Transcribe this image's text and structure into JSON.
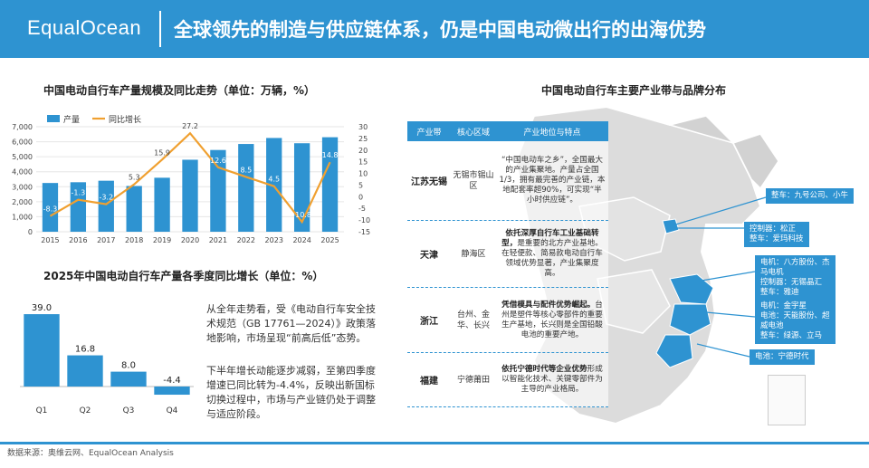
{
  "header": {
    "logo": "EqualOcean",
    "title": "全球领先的制造与供应链体系，仍是中国电动微出行的出海优势"
  },
  "chart1": {
    "title": "中国电动自行车产量规模及同比走势（单位：万辆，%）",
    "legend_bar": "产量",
    "legend_line": "同比增长"
  },
  "chart2": {
    "title": "2025年中国电动自行车产量各季度同比增长（单位：%）"
  },
  "paragraphs": {
    "p1": "从全年走势看，受《电动自行车安全技术规范（GB 17761—2024）》政策落地影响，市场呈现“前高后低”态势。",
    "p2": "下半年增长动能逐步减弱，至第四季度增速已同比转为-4.4%，反映出新国标切换过程中，市场与产业链仍处于调整与适应阶段。"
  },
  "map": {
    "title": "中国电动自行车主要产业带与品牌分布",
    "table_headers": [
      "产业带",
      "核心区域",
      "产业地位与特点"
    ],
    "rows": [
      {
        "belt": "江苏无锡",
        "region": "无锡市锡山区",
        "bold": "",
        "desc": "“中国电动车之乡”，全国最大的产业集聚地。产量占全国1/3，拥有最完善的产业链，本地配套率超90%，可实现“半小时供应链”。"
      },
      {
        "belt": "天津",
        "region": "静海区",
        "bold": "依托深厚自行车工业基础转型，",
        "desc": "是重要的北方产业基地。在轻便款、简易款电动自行车领域优势显著，产业集聚度高。"
      },
      {
        "belt": "浙江",
        "region": "台州、金华、长兴",
        "bold": "凭借模具与配件优势崛起。",
        "desc": "台州是塑件等核心零部件的重要生产基地，长兴则是全国铅酸电池的重要产地。"
      },
      {
        "belt": "福建",
        "region": "宁德莆田",
        "bold": "依托宁德时代等企业优势",
        "desc": "形成以智能化技术、关键零部件为主导的产业格局。"
      }
    ],
    "callouts": [
      "整车：九号公司、小牛",
      "控制器：松正\n整车：爱玛科技",
      "电机：八方股份、杰\n马电机\n控制器：无锡晶汇\n整车：雅迪",
      "电机：金宇星\n电池：天能股份、超\n威电池\n整车：绿源、立马",
      "电池：宁德时代"
    ]
  },
  "footer": "数据来源：奥维云网、EqualOcean Analysis",
  "colors": {
    "brand": "#2e93d1",
    "bar": "#2e93d1",
    "line": "#f0a030"
  },
  "chart_data": [
    {
      "type": "bar",
      "title": "中国电动自行车产量规模及同比走势（单位：万辆，%）",
      "categories": [
        "2015",
        "2016",
        "2017",
        "2018",
        "2019",
        "2020",
        "2021",
        "2022",
        "2023",
        "2024",
        "2025"
      ],
      "series": [
        {
          "name": "产量",
          "kind": "bar",
          "axis": "left",
          "values": [
            3250,
            3300,
            3400,
            3050,
            3600,
            4800,
            5450,
            5850,
            6250,
            5900,
            6300
          ]
        },
        {
          "name": "同比增长",
          "kind": "line",
          "axis": "right",
          "values": [
            -8.3,
            -1.3,
            -3.2,
            5.3,
            15.9,
            27.2,
            12.6,
            8.5,
            4.5,
            -10.8,
            14.8
          ]
        }
      ],
      "y_left_ticks": [
        "0",
        "1,000",
        "2,000",
        "3,000",
        "4,000",
        "5,000",
        "6,000",
        "7,000"
      ],
      "y_right_ticks": [
        "-15",
        "-10",
        "-5",
        "0",
        "5",
        "10",
        "15",
        "20",
        "25",
        "30"
      ],
      "ylim_left": [
        0,
        7000
      ],
      "ylim_right": [
        -15,
        30
      ],
      "legend": "top-left",
      "grid": true
    },
    {
      "type": "bar",
      "title": "2025年中国电动自行车产量各季度同比增长（单位：%）",
      "categories": [
        "Q1",
        "Q2",
        "Q3",
        "Q4"
      ],
      "values": [
        39.0,
        16.8,
        8.0,
        -4.4
      ],
      "labels": [
        "39.0",
        "16.8",
        "8.0",
        "-4.4"
      ]
    }
  ]
}
